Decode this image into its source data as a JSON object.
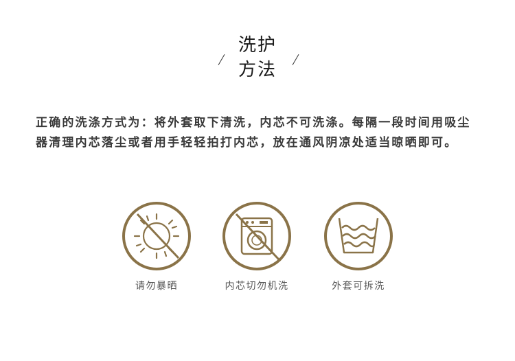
{
  "header": {
    "title_line1": "洗护",
    "title_line2": "方法"
  },
  "description": "正确的洗涤方式为：将外套取下清洗，内芯不可洗涤。每隔一段时间用吸尘器清理内芯落尘或者用手轻轻拍打内芯，放在通风阴凉处适当晾晒即可。",
  "care_icons": [
    {
      "label": "请勿暴晒",
      "icon": "no-sun-icon"
    },
    {
      "label": "内芯切勿机洗",
      "icon": "no-machine-wash-icon"
    },
    {
      "label": "外套可拆洗",
      "icon": "hand-wash-icon"
    }
  ],
  "colors": {
    "accent": "#8a7348",
    "text": "#3a3a3a"
  }
}
